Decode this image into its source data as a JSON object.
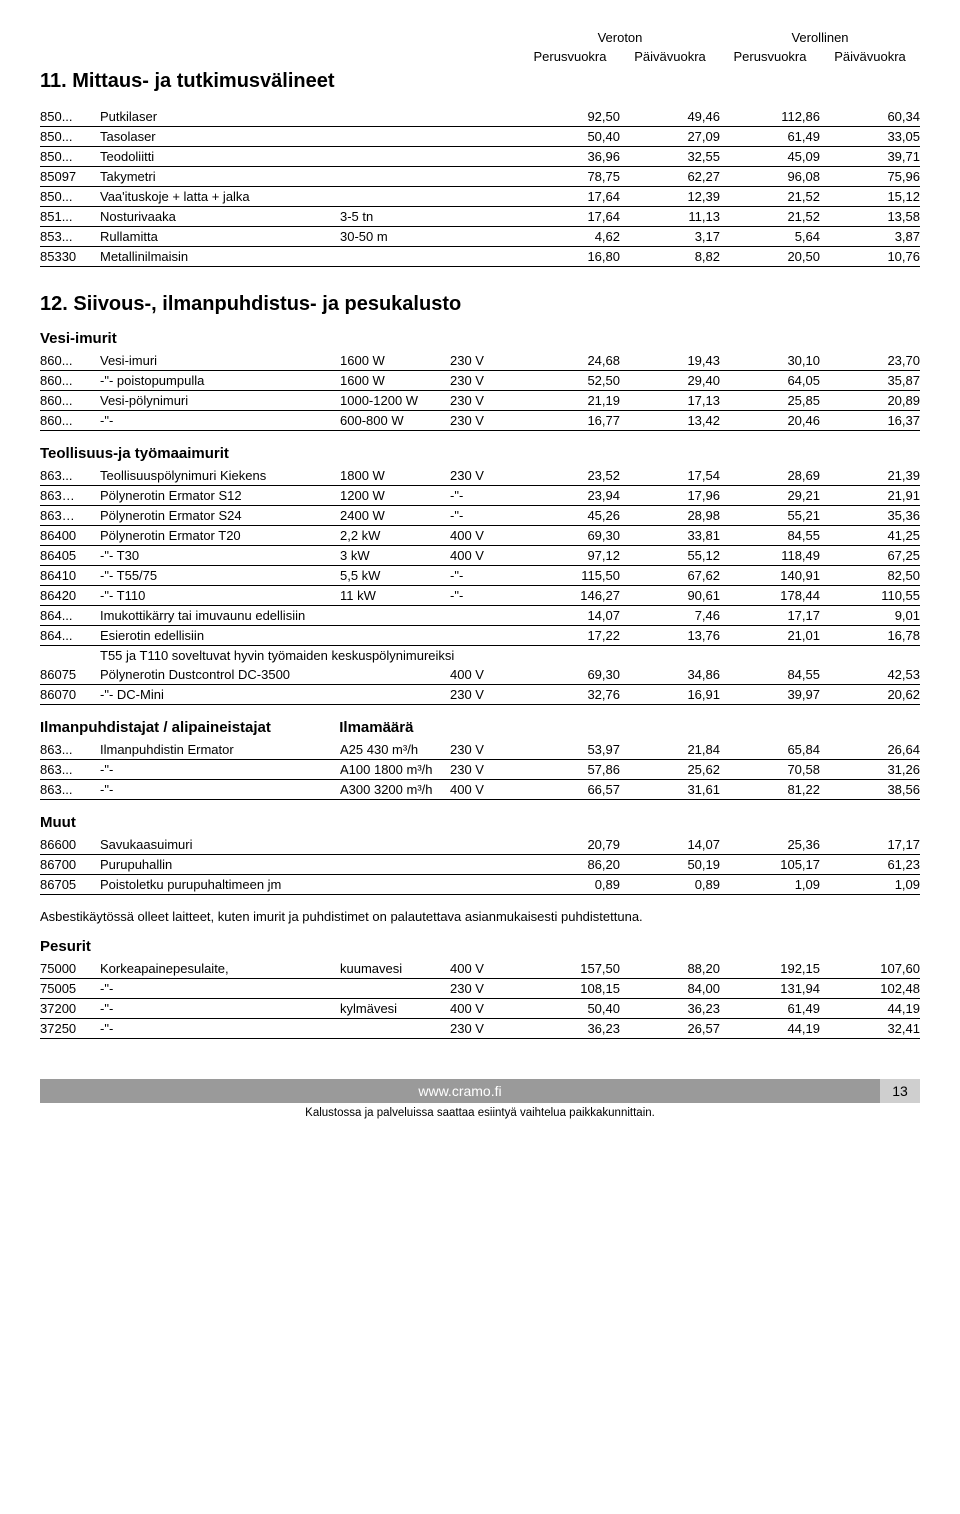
{
  "header": {
    "group1": "Veroton",
    "group2": "Verollinen",
    "sub1": "Perusvuokra",
    "sub2": "Päivävuokra",
    "sub3": "Perusvuokra",
    "sub4": "Päivävuokra"
  },
  "section11_title": "11. Mittaus- ja tutkimusvälineet",
  "table11": [
    [
      "850...",
      "Putkilaser",
      "",
      "",
      "92,50",
      "49,46",
      "112,86",
      "60,34"
    ],
    [
      "850...",
      "Tasolaser",
      "",
      "",
      "50,40",
      "27,09",
      "61,49",
      "33,05"
    ],
    [
      "850...",
      "Teodoliitti",
      "",
      "",
      "36,96",
      "32,55",
      "45,09",
      "39,71"
    ],
    [
      "85097",
      "Takymetri",
      "",
      "",
      "78,75",
      "62,27",
      "96,08",
      "75,96"
    ],
    [
      "850...",
      "Vaa'ituskoje + latta + jalka",
      "",
      "",
      "17,64",
      "12,39",
      "21,52",
      "15,12"
    ],
    [
      "851...",
      "Nosturivaaka",
      "3-5 tn",
      "",
      "17,64",
      "11,13",
      "21,52",
      "13,58"
    ],
    [
      "853...",
      "Rullamitta",
      "30-50 m",
      "",
      "4,62",
      "3,17",
      "5,64",
      "3,87"
    ],
    [
      "85330",
      "Metallinilmaisin",
      "",
      "",
      "16,80",
      "8,82",
      "20,50",
      "10,76"
    ]
  ],
  "section12_title": "12. Siivous-, ilmanpuhdistus- ja pesukalusto",
  "sub_vesi": "Vesi-imurit",
  "table_vesi": [
    [
      "860...",
      "Vesi-imuri",
      "1600 W",
      "230 V",
      "24,68",
      "19,43",
      "30,10",
      "23,70"
    ],
    [
      "860...",
      "-\"-   poistopumpulla",
      "1600 W",
      "230 V",
      "52,50",
      "29,40",
      "64,05",
      "35,87"
    ],
    [
      "860...",
      "Vesi-pölynimuri",
      "1000-1200 W",
      "230 V",
      "21,19",
      "17,13",
      "25,85",
      "20,89"
    ],
    [
      "860...",
      "-\"-",
      "600-800 W",
      "230 V",
      "16,77",
      "13,42",
      "20,46",
      "16,37"
    ]
  ],
  "sub_teoll": "Teollisuus-ja työmaaimurit",
  "table_teoll": [
    [
      "863...",
      "Teollisuuspölynimuri Kiekens",
      "1800 W",
      "230 V",
      "23,52",
      "17,54",
      "28,69",
      "21,39"
    ],
    [
      "863…",
      "Pölynerotin Ermator S12",
      "1200 W",
      "-\"-",
      "23,94",
      "17,96",
      "29,21",
      "21,91"
    ],
    [
      "863…",
      "Pölynerotin Ermator S24",
      "2400 W",
      "-\"-",
      "45,26",
      "28,98",
      "55,21",
      "35,36"
    ],
    [
      "86400",
      "Pölynerotin Ermator T20",
      "2,2 kW",
      "400 V",
      "69,30",
      "33,81",
      "84,55",
      "41,25"
    ],
    [
      "86405",
      "-\"-                           T30",
      "3 kW",
      "400 V",
      "97,12",
      "55,12",
      "118,49",
      "67,25"
    ],
    [
      "86410",
      "-\"-                           T55/75",
      "5,5 kW",
      "-\"-",
      "115,50",
      "67,62",
      "140,91",
      "82,50"
    ],
    [
      "86420",
      "-\"-                           T110",
      "11 kW",
      "-\"-",
      "146,27",
      "90,61",
      "178,44",
      "110,55"
    ],
    [
      "864...",
      "Imukottikärry tai imuvaunu edellisiin",
      "",
      "",
      "14,07",
      "7,46",
      "17,17",
      "9,01"
    ],
    [
      "864...",
      "Esierotin edellisiin",
      "",
      "",
      "17,22",
      "13,76",
      "21,01",
      "16,78"
    ]
  ],
  "teoll_note": "T55 ja T110 soveltuvat hyvin työmaiden keskuspölynimureiksi",
  "table_teoll2": [
    [
      "86075",
      "Pölynerotin Dustcontrol        DC-3500",
      "",
      "400 V",
      "69,30",
      "34,86",
      "84,55",
      "42,53"
    ],
    [
      "86070",
      "-\"-                           DC-Mini",
      "",
      "230 V",
      "32,76",
      "16,91",
      "39,97",
      "20,62"
    ]
  ],
  "sub_ilman": "Ilmanpuhdistajat / alipaineistajat",
  "sub_ilman_col": "Ilmamäärä",
  "table_ilman": [
    [
      "863...",
      "Ilmanpuhdistin Ermator",
      "A25 430 m³/h",
      "230 V",
      "53,97",
      "21,84",
      "65,84",
      "26,64"
    ],
    [
      "863...",
      "-\"-",
      "A100 1800 m³/h",
      "230 V",
      "57,86",
      "25,62",
      "70,58",
      "31,26"
    ],
    [
      "863...",
      "-\"-",
      "A300 3200 m³/h",
      "400 V",
      "66,57",
      "31,61",
      "81,22",
      "38,56"
    ]
  ],
  "sub_muut": "Muut",
  "table_muut": [
    [
      "86600",
      "Savukaasuimuri",
      "",
      "",
      "20,79",
      "14,07",
      "25,36",
      "17,17"
    ],
    [
      "86700",
      "Purupuhallin",
      "",
      "",
      "86,20",
      "50,19",
      "105,17",
      "61,23"
    ],
    [
      "86705",
      "Poistoletku purupuhaltimeen    jm",
      "",
      "",
      "0,89",
      "0,89",
      "1,09",
      "1,09"
    ]
  ],
  "asbesti_note": "Asbestikäytössä olleet laitteet, kuten imurit ja puhdistimet on palautettava asianmukaisesti puhdistettuna.",
  "sub_pesurit": "Pesurit",
  "table_pesurit": [
    [
      "75000",
      "Korkeapainepesulaite,",
      "kuumavesi",
      "400 V",
      "157,50",
      "88,20",
      "192,15",
      "107,60"
    ],
    [
      "75005",
      "-\"-",
      "",
      "230 V",
      "108,15",
      "84,00",
      "131,94",
      "102,48"
    ],
    [
      "37200",
      "-\"-",
      "kylmävesi",
      "400 V",
      "50,40",
      "36,23",
      "61,49",
      "44,19"
    ],
    [
      "37250",
      "-\"-",
      "",
      "230 V",
      "36,23",
      "26,57",
      "44,19",
      "32,41"
    ]
  ],
  "footer": {
    "url": "www.cramo.fi",
    "page": "13",
    "sub": "Kalustossa ja palveluissa saattaa esiintyä vaihtelua paikkakunnittain."
  }
}
